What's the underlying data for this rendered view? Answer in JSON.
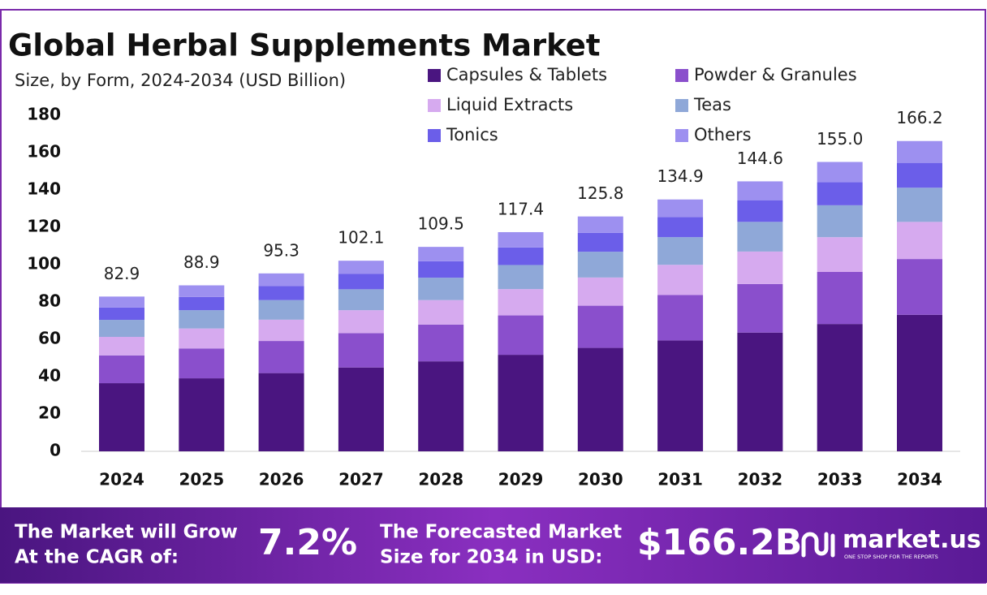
{
  "chart_data": {
    "type": "stacked_bar",
    "title": "Global Herbal Supplements Market",
    "subtitle": "Size, by Form, 2024-2034 (USD Billion)",
    "categories": [
      "2024",
      "2025",
      "2026",
      "2027",
      "2028",
      "2029",
      "2030",
      "2031",
      "2032",
      "2033",
      "2034"
    ],
    "series": [
      {
        "name": "Capsules & Tablets",
        "color": "#4a1580",
        "values": [
          36.5,
          39.1,
          41.9,
          44.9,
          48.2,
          51.7,
          55.4,
          59.4,
          63.6,
          68.2,
          73.1
        ]
      },
      {
        "name": "Powder & Granules",
        "color": "#8a4fcc",
        "values": [
          14.9,
          16.0,
          17.2,
          18.4,
          19.7,
          21.1,
          22.6,
          24.3,
          26.0,
          27.9,
          29.9
        ]
      },
      {
        "name": "Liquid Extracts",
        "color": "#d6aaef",
        "values": [
          9.9,
          10.7,
          11.4,
          12.3,
          13.1,
          14.1,
          15.1,
          16.2,
          17.4,
          18.6,
          19.9
        ]
      },
      {
        "name": "Teas",
        "color": "#8fa8d8",
        "values": [
          9.1,
          9.8,
          10.5,
          11.2,
          12.0,
          12.9,
          13.8,
          14.8,
          15.9,
          17.1,
          18.3
        ]
      },
      {
        "name": "Tonics",
        "color": "#6b5ee9",
        "values": [
          6.6,
          7.1,
          7.6,
          8.2,
          8.8,
          9.4,
          10.1,
          10.8,
          11.6,
          12.4,
          13.3
        ]
      },
      {
        "name": "Others",
        "color": "#9d90f0",
        "values": [
          5.9,
          6.2,
          6.7,
          7.1,
          7.7,
          8.2,
          8.8,
          9.4,
          10.1,
          10.8,
          11.7
        ]
      }
    ],
    "value_labels": [
      "82.9",
      "88.9",
      "95.3",
      "102.1",
      "109.5",
      "117.4",
      "125.8",
      "134.9",
      "144.6",
      "155.0",
      "166.2"
    ],
    "ylim": [
      0,
      180
    ],
    "yticks": [
      0,
      20,
      40,
      60,
      80,
      100,
      120,
      140,
      160,
      180
    ],
    "grid": false
  },
  "footer": {
    "cagr_label": [
      "The Market will Grow",
      "At the CAGR of:"
    ],
    "cagr_value": "7.2%",
    "forecast_label": [
      "The Forecasted Market",
      "Size for 2034 in USD:"
    ],
    "forecast_value": "$166.2B",
    "brand": "market.us",
    "tagline": "ONE STOP SHOP FOR THE REPORTS"
  }
}
